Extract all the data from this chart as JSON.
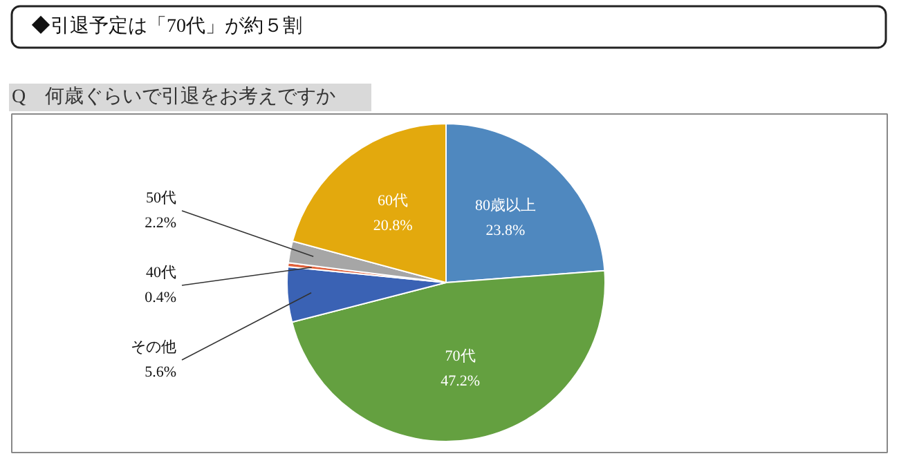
{
  "chart_data": {
    "type": "pie",
    "title": "◆引退予定は「70代」が約５割",
    "subtitle": "Q　何歳ぐらいで引退をお考えですか",
    "categories": [
      "80歳以上",
      "70代",
      "その他",
      "40代",
      "50代",
      "60代"
    ],
    "values": [
      23.8,
      47.2,
      5.6,
      0.4,
      2.2,
      20.8
    ],
    "value_labels": [
      "23.8%",
      "47.2%",
      "5.6%",
      "0.4%",
      "2.2%",
      "20.8%"
    ],
    "colors": [
      "#4f88bf",
      "#64a040",
      "#3a62b4",
      "#e0603a",
      "#a6a6a6",
      "#e3a90d"
    ]
  }
}
